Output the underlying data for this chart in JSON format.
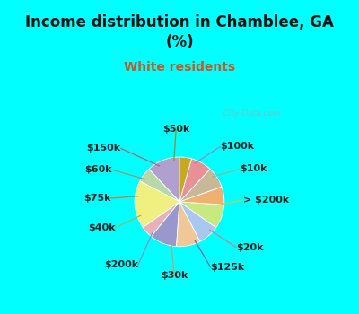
{
  "title": "Income distribution in Chamblee, GA\n(%)",
  "subtitle": "White residents",
  "bg_color": "#00FFFF",
  "chart_bg": "#d0ede0",
  "labels": [
    "$100k",
    "$10k",
    "> $200k",
    "$20k",
    "$125k",
    "$30k",
    "$200k",
    "$40k",
    "$75k",
    "$60k",
    "$150k",
    "$50k"
  ],
  "values": [
    11,
    5,
    16,
    4,
    9,
    8,
    7,
    8,
    6,
    7,
    7,
    4
  ],
  "colors": [
    "#b0a0d0",
    "#b8d8a8",
    "#f0f080",
    "#e8b0b8",
    "#9898cc",
    "#f0c898",
    "#a8c8f0",
    "#c8e880",
    "#f0b070",
    "#c8b898",
    "#e89098",
    "#c8a820"
  ],
  "startangle": 90,
  "label_fontsize": 8,
  "title_fontsize": 12,
  "subtitle_fontsize": 10,
  "watermark": "  City-Data.com",
  "title_color": "#111111",
  "subtitle_color": "#cc5522",
  "border_width": 6,
  "border_color": "#00FFFF"
}
